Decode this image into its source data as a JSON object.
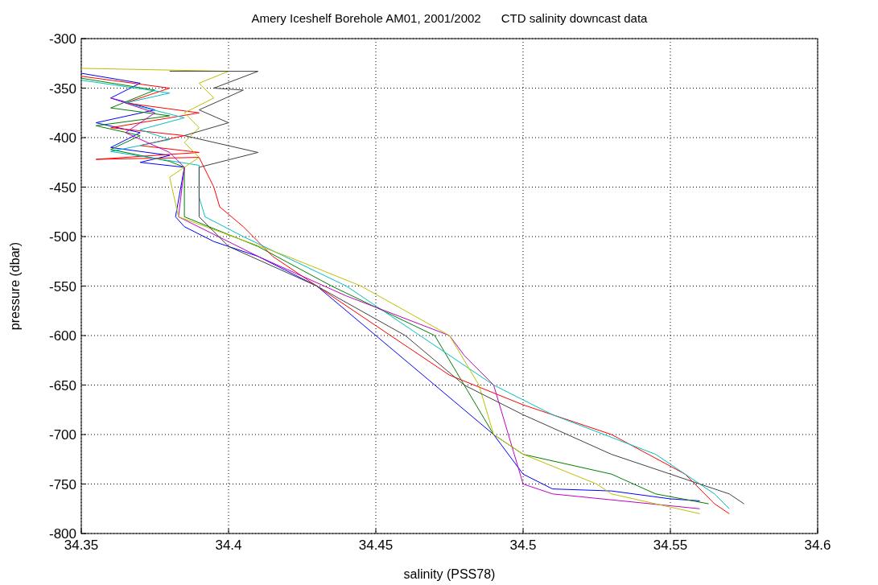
{
  "chart_data": {
    "type": "line",
    "title": "Amery Iceshelf Borehole AM01, 2001/2002      CTD salinity downcast data",
    "xlabel": "salinity (PSS78)",
    "ylabel": "pressure (dbar)",
    "xlim": [
      34.35,
      34.6
    ],
    "xticks": [
      34.35,
      34.4,
      34.45,
      34.5,
      34.55,
      34.6
    ],
    "ylim": [
      -800,
      -300
    ],
    "yticks": [
      -800,
      -750,
      -700,
      -650,
      -600,
      -550,
      -500,
      -450,
      -400,
      -350,
      -300
    ],
    "grid": true,
    "line_style": "solid",
    "series": [
      {
        "color": "#0000ff",
        "x": [
          34.35,
          34.37,
          34.36,
          34.375,
          34.355,
          34.37,
          34.36,
          34.38,
          34.37,
          34.385,
          34.382,
          34.385,
          34.395,
          34.41,
          34.43,
          34.45,
          34.47,
          34.49,
          34.5,
          34.51,
          34.53,
          34.55,
          34.56
        ],
        "values": [
          -335,
          -345,
          -360,
          -372,
          -385,
          -395,
          -410,
          -418,
          -425,
          -430,
          -480,
          -490,
          -505,
          -520,
          -550,
          -600,
          -650,
          -700,
          -740,
          -755,
          -757,
          -765,
          -767
        ]
      },
      {
        "color": "#008000",
        "x": [
          34.35,
          34.375,
          34.36,
          34.38,
          34.355,
          34.37,
          34.36,
          34.38,
          34.385,
          34.385,
          34.41,
          34.435,
          34.47,
          34.48,
          34.49,
          34.5,
          34.53,
          34.545,
          34.563
        ],
        "values": [
          -340,
          -352,
          -370,
          -378,
          -388,
          -398,
          -412,
          -424,
          -430,
          -480,
          -510,
          -550,
          -600,
          -650,
          -700,
          -720,
          -740,
          -760,
          -770
        ]
      },
      {
        "color": "#ff0000",
        "x": [
          34.35,
          34.38,
          34.365,
          34.39,
          34.36,
          34.385,
          34.37,
          34.39,
          34.355,
          34.39,
          34.395,
          34.397,
          34.405,
          34.415,
          34.43,
          34.455,
          34.475,
          34.5,
          34.53,
          34.555,
          34.565,
          34.57
        ],
        "values": [
          -338,
          -350,
          -365,
          -375,
          -390,
          -398,
          -408,
          -415,
          -422,
          -420,
          -450,
          -470,
          -490,
          -520,
          -550,
          -600,
          -640,
          -670,
          -700,
          -740,
          -770,
          -780
        ]
      },
      {
        "color": "#00bfbf",
        "x": [
          34.35,
          34.38,
          34.365,
          34.385,
          34.37,
          34.38,
          34.36,
          34.39,
          34.39,
          34.392,
          34.405,
          34.44,
          34.465,
          34.49,
          34.51,
          34.545,
          34.565,
          34.57
        ],
        "values": [
          -342,
          -355,
          -365,
          -380,
          -392,
          -402,
          -414,
          -428,
          -460,
          -480,
          -500,
          -550,
          -600,
          -650,
          -680,
          -720,
          -760,
          -775
        ]
      },
      {
        "color": "#bf00bf",
        "x": [
          34.36,
          34.375,
          34.365,
          34.38,
          34.385,
          34.383,
          34.41,
          34.44,
          34.475,
          34.48,
          34.49,
          34.495,
          34.5,
          34.51,
          34.56
        ],
        "values": [
          -360,
          -375,
          -395,
          -415,
          -430,
          -480,
          -520,
          -560,
          -600,
          -620,
          -650,
          -700,
          -750,
          -760,
          -775
        ]
      },
      {
        "color": "#bfbf00",
        "x": [
          34.35,
          34.4,
          34.39,
          34.395,
          34.385,
          34.39,
          34.385,
          34.39,
          34.38,
          34.383,
          34.42,
          34.445,
          34.475,
          34.485,
          34.49,
          34.5,
          34.525,
          34.53,
          34.56
        ],
        "values": [
          -330,
          -333,
          -345,
          -360,
          -375,
          -390,
          -405,
          -420,
          -440,
          -480,
          -520,
          -550,
          -600,
          -650,
          -700,
          -720,
          -750,
          -760,
          -780
        ]
      },
      {
        "color": "#404040",
        "x": [
          34.38,
          34.41,
          34.395,
          34.405,
          34.39,
          34.4,
          34.385,
          34.41,
          34.39,
          34.39,
          34.4,
          34.43,
          34.46,
          34.48,
          34.5,
          34.53,
          34.57,
          34.575
        ],
        "values": [
          -333,
          -333,
          -350,
          -352,
          -372,
          -385,
          -398,
          -415,
          -430,
          -480,
          -510,
          -550,
          -600,
          -650,
          -680,
          -720,
          -760,
          -770
        ]
      }
    ]
  }
}
